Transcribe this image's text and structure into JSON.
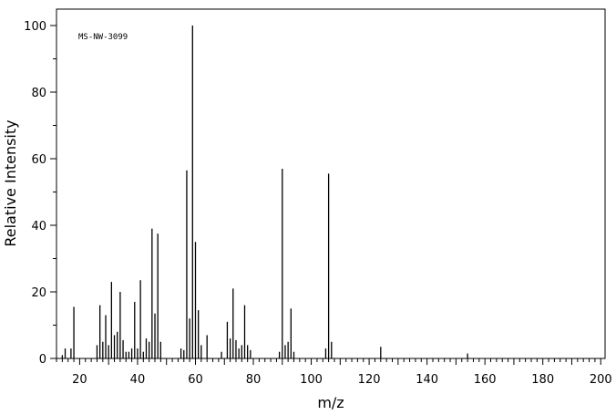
{
  "chart_data": {
    "type": "bar",
    "xlabel": "m/z",
    "ylabel": "Relative Intensity",
    "annotation": "MS-NW-3099",
    "xlim": [
      10,
      200
    ],
    "ylim": [
      0,
      100
    ],
    "x_ticks": [
      20,
      40,
      60,
      80,
      100,
      120,
      140,
      160,
      180,
      200
    ],
    "y_ticks": [
      0,
      20,
      40,
      60,
      80,
      100
    ],
    "grid": false,
    "series": [
      {
        "mz": [
          14,
          15,
          17,
          18,
          26,
          27,
          28,
          29,
          30,
          31,
          32,
          33,
          34,
          35,
          36,
          37,
          38,
          39,
          40,
          41,
          42,
          43,
          44,
          45,
          46,
          47,
          48,
          55,
          56,
          57,
          58,
          59,
          60,
          61,
          62,
          64,
          69,
          71,
          72,
          73,
          74,
          75,
          76,
          77,
          78,
          79,
          89,
          90,
          91,
          92,
          93,
          94,
          105,
          106,
          107,
          124,
          154
        ],
        "intensity": [
          1,
          3,
          3,
          15.5,
          4,
          16,
          5,
          13,
          4,
          23,
          7,
          8,
          20,
          5.5,
          2,
          2,
          3,
          17,
          3,
          23.5,
          2,
          6,
          5,
          39,
          13.5,
          37.5,
          5,
          3,
          2.5,
          56.5,
          12,
          100,
          35,
          14.5,
          4,
          7,
          2,
          11,
          6,
          21,
          5.5,
          3,
          4,
          16,
          4,
          2.5,
          2,
          57,
          4,
          5,
          15,
          2,
          3,
          55.5,
          5,
          3.5,
          1.5
        ]
      }
    ]
  }
}
